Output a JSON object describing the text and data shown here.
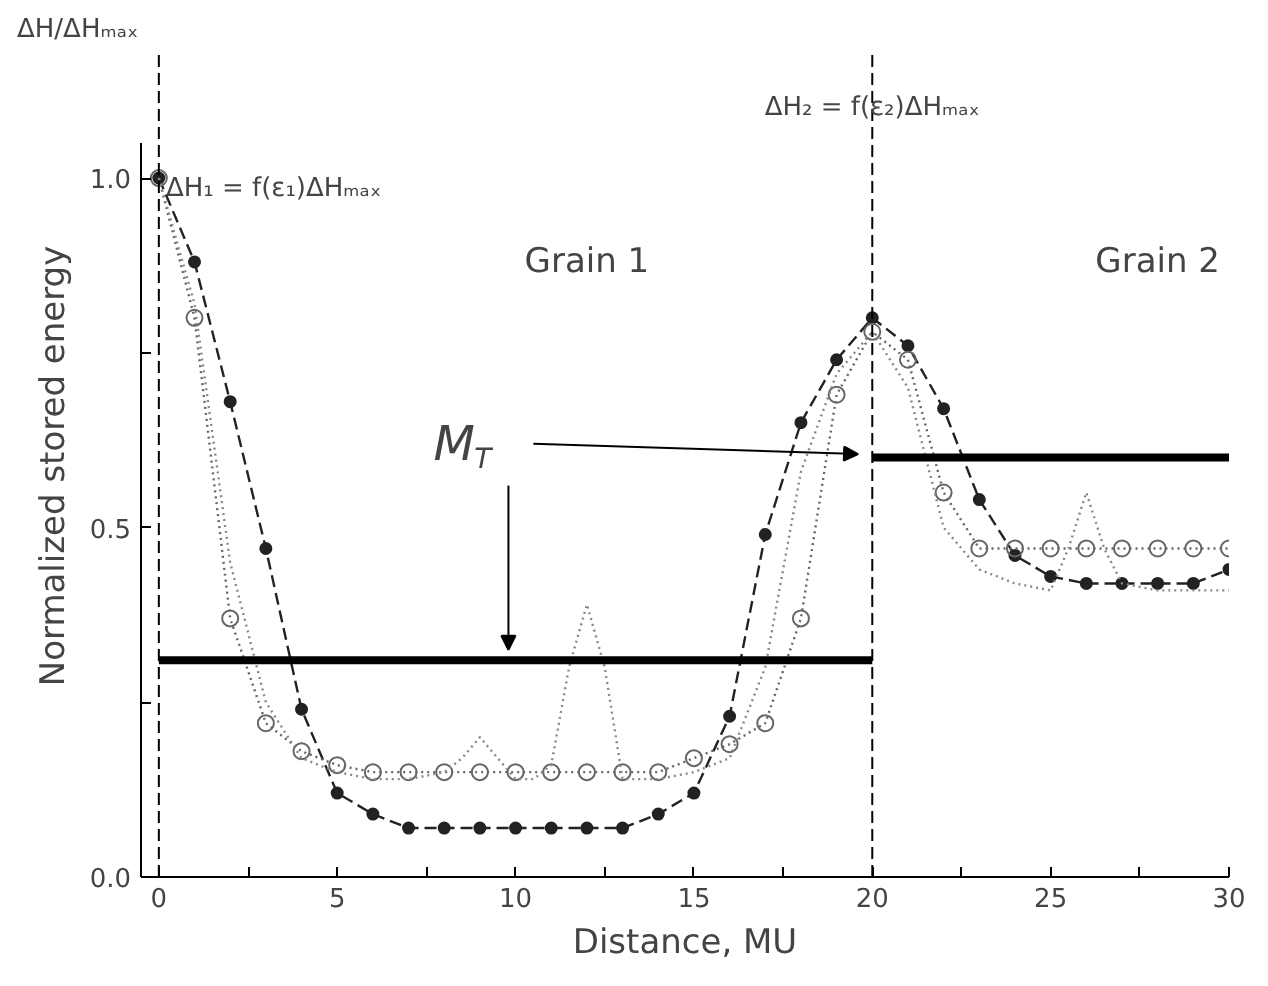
{
  "chart_data": {
    "type": "line",
    "xlabel": "Distance, MU",
    "ylabel": "Normalized stored energy",
    "xlim": [
      -0.5,
      30
    ],
    "ylim": [
      0,
      1.05
    ],
    "xticks": [
      0,
      {
        "value": 2.5,
        "label": null
      },
      5,
      {
        "value": 7.5,
        "label": null
      },
      10,
      {
        "value": 12.5,
        "label": null
      },
      15,
      {
        "value": 17.5,
        "label": null
      },
      20,
      {
        "value": 22.5,
        "label": null
      },
      25,
      {
        "value": 27.5,
        "label": null
      },
      30
    ],
    "yticks": [
      {
        "value": 0,
        "label": "0.0"
      },
      {
        "value": 0.25,
        "label": null
      },
      {
        "value": 0.5,
        "label": "0.5"
      },
      {
        "value": 0.75,
        "label": null
      },
      {
        "value": 1,
        "label": "1.0"
      }
    ],
    "grid": false,
    "series": [
      {
        "color": "#222222",
        "marker": "circle",
        "line_style": "dashed",
        "x": [
          0,
          1,
          2,
          3,
          4,
          5,
          6,
          7,
          8,
          9,
          10,
          11,
          12,
          13,
          14,
          15,
          16,
          17,
          18,
          19,
          20,
          21,
          22,
          23,
          24,
          25,
          26,
          27,
          28,
          29,
          30
        ],
        "values": [
          1.0,
          0.88,
          0.68,
          0.47,
          0.24,
          0.12,
          0.09,
          0.07,
          0.07,
          0.07,
          0.07,
          0.07,
          0.07,
          0.07,
          0.09,
          0.12,
          0.23,
          0.49,
          0.65,
          0.74,
          0.8,
          0.76,
          0.67,
          0.54,
          0.46,
          0.43,
          0.42,
          0.42,
          0.42,
          0.42,
          0.44
        ]
      },
      {
        "color": "#666666",
        "marker": "circle_open",
        "line_style": "dotted",
        "x": [
          0,
          1,
          2,
          3,
          4,
          5,
          6,
          7,
          8,
          9,
          10,
          11,
          12,
          13,
          14,
          15,
          16,
          17,
          18,
          19,
          20,
          21,
          22,
          23,
          24,
          25,
          26,
          27,
          28,
          29,
          30
        ],
        "values": [
          1.0,
          0.8,
          0.37,
          0.22,
          0.18,
          0.16,
          0.15,
          0.15,
          0.15,
          0.15,
          0.15,
          0.15,
          0.15,
          0.15,
          0.15,
          0.17,
          0.19,
          0.22,
          0.37,
          0.69,
          0.78,
          0.74,
          0.55,
          0.47,
          0.47,
          0.47,
          0.47,
          0.47,
          0.47,
          0.47,
          0.47
        ]
      },
      {
        "color": "#888888",
        "marker": "none",
        "line_style": "dotted",
        "x": [
          0,
          1,
          2,
          3,
          4,
          5,
          6,
          7,
          8,
          8.5,
          9,
          9.5,
          10,
          10.5,
          11,
          11.5,
          12,
          12.5,
          13,
          14,
          15,
          16,
          17,
          18,
          19,
          20,
          21,
          22,
          23,
          24,
          25,
          25.5,
          26,
          26.5,
          27,
          28,
          29,
          30
        ],
        "values": [
          1.0,
          0.82,
          0.45,
          0.25,
          0.17,
          0.15,
          0.14,
          0.14,
          0.15,
          0.17,
          0.2,
          0.17,
          0.14,
          0.14,
          0.16,
          0.3,
          0.39,
          0.3,
          0.14,
          0.14,
          0.15,
          0.17,
          0.3,
          0.58,
          0.72,
          0.78,
          0.7,
          0.5,
          0.44,
          0.42,
          0.41,
          0.47,
          0.55,
          0.47,
          0.42,
          0.41,
          0.41,
          0.41
        ]
      },
      {
        "color": "#000000",
        "marker": "none",
        "line_style": "solid",
        "x": [
          0,
          20
        ],
        "values": [
          0.31,
          0.31
        ]
      },
      {
        "color": "#000000",
        "marker": "none",
        "line_style": "solid",
        "x": [
          20,
          30
        ],
        "values": [
          0.6,
          0.6
        ]
      }
    ],
    "ref_lines": [
      {
        "axis": "x",
        "value": 0,
        "line_style": "dashed",
        "color": "#000000"
      },
      {
        "axis": "x",
        "value": 20,
        "line_style": "dashed",
        "color": "#000000"
      }
    ],
    "annotations": [
      "ΔH/ΔHₘₐₓ",
      {
        "text": "ΔH₁ = f(ε₁)ΔHₘₐₓ",
        "x": 0,
        "y": 1.0
      },
      "ΔH₂ = f(ε₂)ΔHₘₐₓ",
      "Grain 1",
      "Grain 2",
      {
        "text": "M$_{T}$",
        "x": 20,
        "y": 0.6
      }
    ]
  }
}
